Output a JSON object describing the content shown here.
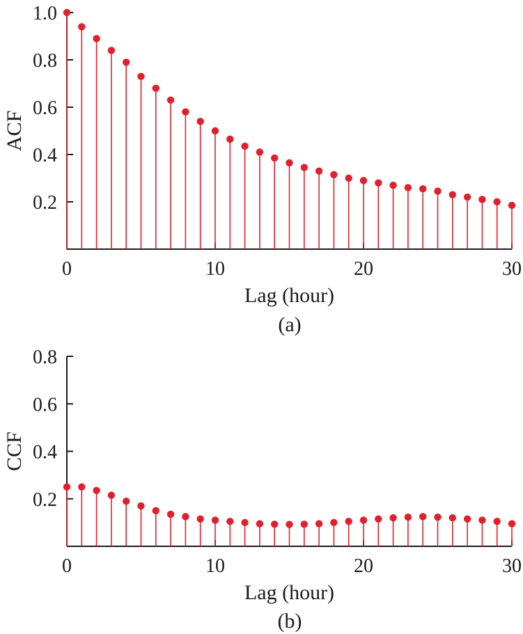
{
  "chart_data": [
    {
      "type": "stem",
      "caption": "(a)",
      "xlabel": "Lag (hour)",
      "ylabel": "ACF",
      "xlim": [
        0,
        30
      ],
      "ylim": [
        0,
        1.0
      ],
      "xticks": [
        0,
        10,
        20,
        30
      ],
      "yticks": [
        0.2,
        0.4,
        0.6,
        0.8,
        1.0
      ],
      "ytick_labels": [
        "0.2",
        "0.4",
        "0.6",
        "0.8",
        "1.0"
      ],
      "color": "#e0202c",
      "x": [
        0,
        1,
        2,
        3,
        4,
        5,
        6,
        7,
        8,
        9,
        10,
        11,
        12,
        13,
        14,
        15,
        16,
        17,
        18,
        19,
        20,
        21,
        22,
        23,
        24,
        25,
        26,
        27,
        28,
        29,
        30
      ],
      "values": [
        1.0,
        0.94,
        0.89,
        0.84,
        0.79,
        0.73,
        0.68,
        0.63,
        0.58,
        0.54,
        0.5,
        0.465,
        0.435,
        0.41,
        0.385,
        0.365,
        0.345,
        0.33,
        0.315,
        0.3,
        0.29,
        0.28,
        0.27,
        0.26,
        0.255,
        0.245,
        0.23,
        0.22,
        0.21,
        0.2,
        0.185
      ]
    },
    {
      "type": "stem",
      "caption": "(b)",
      "xlabel": "Lag (hour)",
      "ylabel": "CCF",
      "xlim": [
        0,
        30
      ],
      "ylim": [
        0,
        0.8
      ],
      "xticks": [
        0,
        10,
        20,
        30
      ],
      "yticks": [
        0.2,
        0.4,
        0.6,
        0.8
      ],
      "ytick_labels": [
        "0.2",
        "0.4",
        "0.6",
        "0.8"
      ],
      "color": "#e0202c",
      "x": [
        0,
        1,
        2,
        3,
        4,
        5,
        6,
        7,
        8,
        9,
        10,
        11,
        12,
        13,
        14,
        15,
        16,
        17,
        18,
        19,
        20,
        21,
        22,
        23,
        24,
        25,
        26,
        27,
        28,
        29,
        30
      ],
      "values": [
        0.25,
        0.25,
        0.235,
        0.215,
        0.19,
        0.17,
        0.15,
        0.135,
        0.125,
        0.115,
        0.11,
        0.105,
        0.1,
        0.095,
        0.093,
        0.092,
        0.093,
        0.095,
        0.1,
        0.105,
        0.11,
        0.115,
        0.12,
        0.123,
        0.125,
        0.123,
        0.12,
        0.115,
        0.11,
        0.105,
        0.095
      ]
    }
  ]
}
